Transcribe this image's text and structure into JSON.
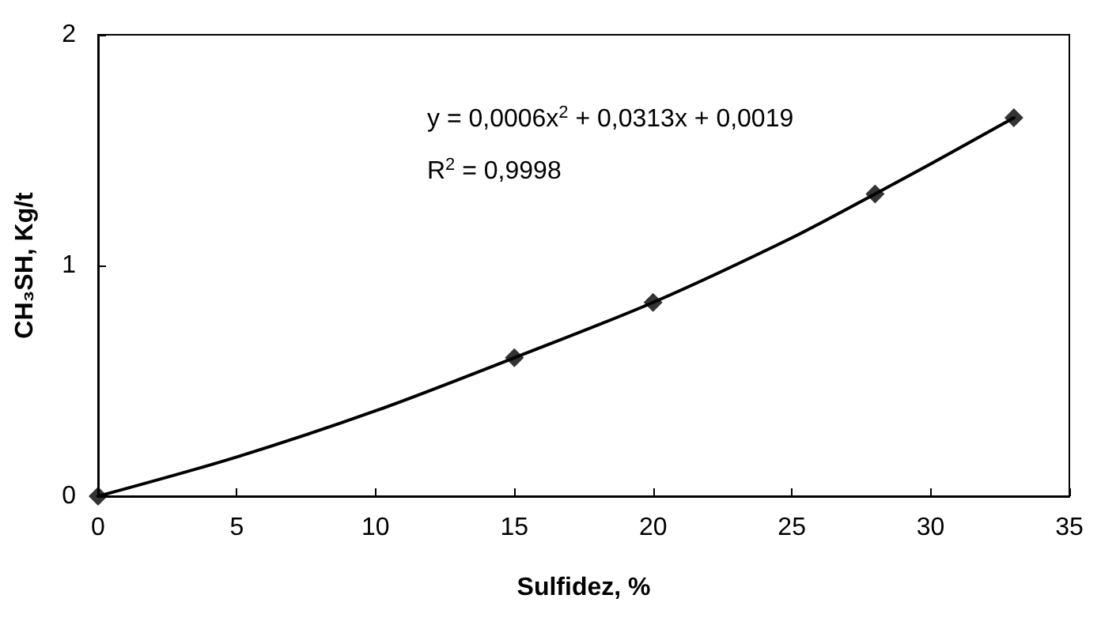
{
  "chart_data": {
    "type": "scatter",
    "xlabel": "Sulfidez, %",
    "ylabel": "CH₃SH, Kg/t",
    "series": [
      {
        "color": "#000000",
        "marker": "diamond",
        "x": [
          0,
          15,
          20,
          28,
          33
        ],
        "values": [
          0,
          0.6,
          0.84,
          1.31,
          1.64
        ]
      },
      {
        "type": "line",
        "color": "#000000",
        "marker": "none",
        "x": [
          0,
          5,
          10,
          15,
          20,
          25,
          28,
          30,
          33
        ],
        "values": [
          0,
          0.17,
          0.37,
          0.6,
          0.84,
          1.12,
          1.31,
          1.44,
          1.64
        ]
      }
    ],
    "annotations": [
      "y = 0,0006x$^{2}$ + 0,0313x + 0,0019",
      "R$^{2}$ = 0,9998"
    ],
    "xlim": [
      0,
      35
    ],
    "xticks": [
      0,
      5,
      10,
      15,
      20,
      25,
      30,
      35
    ],
    "ylim": [
      0,
      2
    ],
    "yticks": [
      0,
      1,
      2
    ],
    "grid": false
  }
}
